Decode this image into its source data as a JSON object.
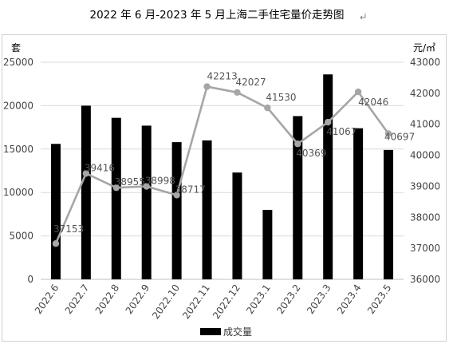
{
  "chart_data": {
    "type": "bar",
    "title": "2022 年 6 月-2023 年 5 月上海二手住宅量价走势图",
    "categories": [
      "2022.6",
      "2022.7",
      "2022.8",
      "2022.9",
      "2022.10",
      "2022.11",
      "2022.12",
      "2023.1",
      "2023.2",
      "2023.3",
      "2023.4",
      "2023.5"
    ],
    "series": [
      {
        "name": "成交量",
        "type": "bar",
        "axis": "left",
        "color": "#000000",
        "values": [
          15600,
          20000,
          18600,
          17700,
          15800,
          16000,
          12300,
          8000,
          18800,
          23600,
          17400,
          14900
        ]
      },
      {
        "name": "",
        "type": "line",
        "axis": "right",
        "color": "#a6a6a6",
        "values": [
          37153,
          39416,
          38955,
          38998,
          38717,
          42213,
          42027,
          41530,
          40369,
          41067,
          42046,
          40697
        ],
        "labels": [
          "37153",
          "39416",
          "38955",
          "38998",
          "38717",
          "42213",
          "42027",
          "41530",
          "40369",
          "41067",
          "42046",
          "40697"
        ]
      }
    ],
    "ylabel_left": "套",
    "ylabel_right": "元/㎡",
    "ylim_left": [
      0,
      25000
    ],
    "yticks_left": [
      0,
      5000,
      10000,
      15000,
      20000,
      25000
    ],
    "ytick_labels_left": [
      "0",
      "5000",
      "10000",
      "15000",
      "20000",
      "25000"
    ],
    "ylim_right": [
      36000,
      43000
    ],
    "yticks_right": [
      36000,
      37000,
      38000,
      39000,
      40000,
      41000,
      42000,
      43000
    ],
    "ytick_labels_right": [
      "36000",
      "37000",
      "38000",
      "39000",
      "40000",
      "41000",
      "42000",
      "43000"
    ],
    "grid": true,
    "legend": {
      "position": "bottom",
      "entries": [
        "成交量"
      ]
    }
  }
}
